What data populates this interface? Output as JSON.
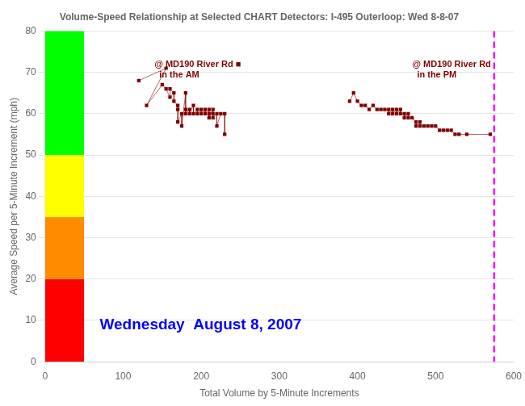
{
  "chart_data": {
    "type": "scatter",
    "title": "Volume-Speed Relationship at Selected CHART Detectors: I-495 Outerloop: Wed 8-8-07",
    "xlabel": "Total Volume by 5-Minute Increments",
    "ylabel": "Average Speed per 5-Minute Increment (mph)",
    "xlim": [
      0,
      600
    ],
    "ylim": [
      0,
      80
    ],
    "xticks": [
      0,
      100,
      200,
      300,
      400,
      500,
      600
    ],
    "yticks": [
      0,
      10,
      20,
      30,
      40,
      50,
      60,
      70,
      80
    ],
    "grid": "y",
    "series": [
      {
        "color": "#800000",
        "marker": "square",
        "line_style": "solid",
        "x": [
          120,
          155,
          130,
          150,
          155,
          160,
          160,
          165,
          165,
          170,
          170,
          170,
          175,
          175,
          180,
          180,
          180,
          185,
          185,
          190,
          190,
          195,
          195,
          200,
          200,
          205,
          205,
          210,
          210,
          210,
          215,
          215,
          215,
          220,
          220,
          225,
          230,
          230
        ],
        "values": [
          68,
          71,
          62,
          67,
          66,
          64,
          66,
          65,
          63,
          62,
          61,
          58,
          60,
          57,
          65,
          61,
          60,
          61,
          60,
          62,
          60,
          61,
          60,
          61,
          60,
          61,
          60,
          61,
          60,
          59,
          61,
          60,
          59,
          60,
          57,
          60,
          60,
          55
        ]
      },
      {
        "color": "#800000",
        "marker": "square",
        "line_style": "solid",
        "x": [
          390,
          395,
          400,
          405,
          410,
          415,
          420,
          425,
          430,
          435,
          440,
          440,
          445,
          445,
          450,
          450,
          455,
          455,
          460,
          460,
          465,
          465,
          470,
          475,
          475,
          480,
          480,
          485,
          490,
          495,
          500,
          505,
          510,
          515,
          520,
          525,
          530,
          540,
          570
        ],
        "values": [
          63,
          65,
          63,
          62,
          62,
          61,
          62,
          61,
          61,
          61,
          61,
          60,
          61,
          60,
          61,
          60,
          61,
          60,
          60,
          59,
          60,
          59,
          59,
          58,
          57,
          58,
          57,
          57,
          57,
          57,
          57,
          56,
          56,
          56,
          56,
          55,
          55,
          55,
          55
        ]
      }
    ],
    "bands": [
      {
        "xmin": 0,
        "xmax": 50,
        "ymin": 0,
        "ymax": 20,
        "color": "#FF0000"
      },
      {
        "xmin": 0,
        "xmax": 50,
        "ymin": 20,
        "ymax": 35,
        "color": "#FF8C00"
      },
      {
        "xmin": 0,
        "xmax": 50,
        "ymin": 35,
        "ymax": 50,
        "color": "#FFFF00"
      },
      {
        "xmin": 0,
        "xmax": 50,
        "ymin": 50,
        "ymax": 80,
        "color": "#00FF00"
      }
    ],
    "vlines": [
      {
        "x": 575,
        "color": "#FF00FF",
        "line_style": "dashed"
      }
    ],
    "annotations": [
      {
        "text": "@ MD190 River Rd ■\n  in the AM",
        "x": 140,
        "y": 73,
        "color": "#800000"
      },
      {
        "text": "@ MD190 River Rd\n  in the PM",
        "x": 470,
        "y": 73,
        "color": "#800000"
      }
    ],
    "note": {
      "text": "Wednesday  August 8, 2007",
      "x": 70,
      "y": 7,
      "color": "#0000FF"
    }
  }
}
